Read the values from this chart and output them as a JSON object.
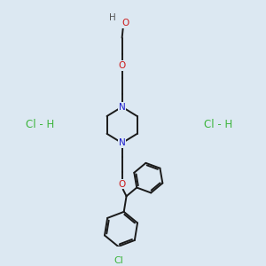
{
  "bg_color": "#dce8f2",
  "bond_color": "#1a1a1a",
  "N_color": "#1a1acc",
  "O_color": "#cc1a1a",
  "Cl_color": "#3db53d",
  "H_color": "#555555",
  "HCl_color": "#3db53d",
  "line_width": 1.4,
  "font_size": 7.5,
  "figsize": [
    3.0,
    3.0
  ],
  "dpi": 100,
  "xlim": [
    0,
    10
  ],
  "ylim": [
    0,
    10
  ]
}
